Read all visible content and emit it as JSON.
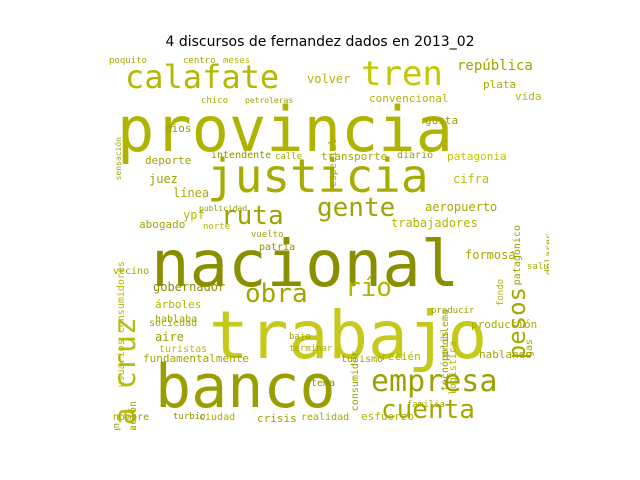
{
  "title": "4 discursos de fernandez dados en 2013_02",
  "cloud": {
    "words": [
      {
        "text": "provincia",
        "color": "#b0b400",
        "size": 62,
        "rot": 0
      },
      {
        "text": "nacional",
        "color": "#8a8f00",
        "size": 64,
        "rot": 0
      },
      {
        "text": "trabajo",
        "color": "#c6c91a",
        "size": 66,
        "rot": 0
      },
      {
        "text": "banco",
        "color": "#9a9e00",
        "size": 60,
        "rot": 0
      },
      {
        "text": "justicia",
        "color": "#a8ac00",
        "size": 46,
        "rot": 0
      },
      {
        "text": "calafate",
        "color": "#b4b800",
        "size": 32,
        "rot": 0
      },
      {
        "text": "tren",
        "color": "#c4c600",
        "size": 34,
        "rot": 0
      },
      {
        "text": "empresa",
        "color": "#9ca000",
        "size": 30,
        "rot": 0
      },
      {
        "text": "cuenta",
        "color": "#a4a800",
        "size": 26,
        "rot": 0
      },
      {
        "text": "santa cruz",
        "color": "#b8bb10",
        "size": 30,
        "rot": -90
      },
      {
        "text": "ruta",
        "color": "#9ea200",
        "size": 26,
        "rot": 0
      },
      {
        "text": "gente",
        "color": "#a0a400",
        "size": 26,
        "rot": 0
      },
      {
        "text": "obra",
        "color": "#a2a600",
        "size": 26,
        "rot": 0
      },
      {
        "text": "río",
        "color": "#b2b600",
        "size": 26,
        "rot": 0
      },
      {
        "text": "pesos",
        "color": "#a6aa00",
        "size": 24,
        "rot": -90
      },
      {
        "text": "república",
        "color": "#a0a400",
        "size": 14,
        "rot": 0
      },
      {
        "text": "convencional",
        "color": "#b0b400",
        "size": 11,
        "rot": 0
      },
      {
        "text": "plata",
        "color": "#a8ac00",
        "size": 11,
        "rot": 0
      },
      {
        "text": "vida",
        "color": "#b4b800",
        "size": 11,
        "rot": 0
      },
      {
        "text": "gusta",
        "color": "#9a9e00",
        "size": 11,
        "rot": 0
      },
      {
        "text": "patagonia",
        "color": "#c2c400",
        "size": 11,
        "rot": 0
      },
      {
        "text": "diario",
        "color": "#9c9f00",
        "size": 10,
        "rot": 0
      },
      {
        "text": "transporte",
        "color": "#a4a800",
        "size": 11,
        "rot": 0
      },
      {
        "text": "intendente",
        "color": "#8f9300",
        "size": 10,
        "rot": 0
      },
      {
        "text": "deporte",
        "color": "#a0a400",
        "size": 11,
        "rot": 0
      },
      {
        "text": "cifra",
        "color": "#b8bb10",
        "size": 12,
        "rot": 0
      },
      {
        "text": "aeropuerto",
        "color": "#a6aa00",
        "size": 12,
        "rot": 0
      },
      {
        "text": "trabajadores",
        "color": "#b2b600",
        "size": 12,
        "rot": 0
      },
      {
        "text": "juez",
        "color": "#9ea200",
        "size": 12,
        "rot": 0
      },
      {
        "text": "línea",
        "color": "#a8ac00",
        "size": 12,
        "rot": 0
      },
      {
        "text": "ypf",
        "color": "#b4b800",
        "size": 12,
        "rot": 0
      },
      {
        "text": "abogado",
        "color": "#a2a600",
        "size": 11,
        "rot": 0
      },
      {
        "text": "gobernador",
        "color": "#8c9000",
        "size": 12,
        "rot": 0
      },
      {
        "text": "árboles",
        "color": "#b0b400",
        "size": 11,
        "rot": 0
      },
      {
        "text": "hablaba",
        "color": "#9a9e00",
        "size": 10,
        "rot": 0
      },
      {
        "text": "sociedad",
        "color": "#a4a800",
        "size": 10,
        "rot": 0
      },
      {
        "text": "aire",
        "color": "#9c9f00",
        "size": 12,
        "rot": 0
      },
      {
        "text": "turistas",
        "color": "#b8bb10",
        "size": 10,
        "rot": 0
      },
      {
        "text": "fundamentalmente",
        "color": "#a0a400",
        "size": 11,
        "rot": 0
      },
      {
        "text": "formosa",
        "color": "#a6aa00",
        "size": 12,
        "rot": 0
      },
      {
        "text": "producción",
        "color": "#a8ac00",
        "size": 11,
        "rot": 0
      },
      {
        "text": "producir",
        "color": "#9ea200",
        "size": 9,
        "rot": 0
      },
      {
        "text": "hablando",
        "color": "#a2a600",
        "size": 11,
        "rot": 0
      },
      {
        "text": "recién",
        "color": "#b2b600",
        "size": 11,
        "rot": 0
      },
      {
        "text": "turismo",
        "color": "#9a9e00",
        "size": 10,
        "rot": 0
      },
      {
        "text": "tema",
        "color": "#8f9300",
        "size": 10,
        "rot": 0
      },
      {
        "text": "crisis",
        "color": "#9c9f00",
        "size": 11,
        "rot": 0
      },
      {
        "text": "realidad",
        "color": "#a4a800",
        "size": 10,
        "rot": 0
      },
      {
        "text": "esfuerzo",
        "color": "#b0b400",
        "size": 11,
        "rot": 0
      },
      {
        "text": "familia",
        "color": "#a6aa00",
        "size": 9,
        "rot": 0
      },
      {
        "text": "ciudad",
        "color": "#a8ac00",
        "size": 10,
        "rot": 0
      },
      {
        "text": "turbio",
        "color": "#8c9000",
        "size": 9,
        "rot": 0
      },
      {
        "text": "nombre",
        "color": "#9ea200",
        "size": 10,
        "rot": 0
      },
      {
        "text": "vecino",
        "color": "#a0a400",
        "size": 10,
        "rot": 0
      },
      {
        "text": "centro",
        "color": "#a2a600",
        "size": 9,
        "rot": 0
      },
      {
        "text": "meses",
        "color": "#b4b800",
        "size": 9,
        "rot": 0
      },
      {
        "text": "poquito",
        "color": "#a6aa00",
        "size": 9,
        "rot": 0
      },
      {
        "text": "volver",
        "color": "#b2b600",
        "size": 12,
        "rot": 0
      },
      {
        "text": "dios",
        "color": "#9a9e00",
        "size": 11,
        "rot": 0
      },
      {
        "text": "chico",
        "color": "#a8ac00",
        "size": 9,
        "rot": 0
      },
      {
        "text": "petroleras",
        "color": "#9c9f00",
        "size": 8,
        "rot": 0
      },
      {
        "text": "calle",
        "color": "#a4a800",
        "size": 9,
        "rot": 0
      },
      {
        "text": "patria",
        "color": "#8f9300",
        "size": 10,
        "rot": 0
      },
      {
        "text": "vuelto",
        "color": "#a2a600",
        "size": 9,
        "rot": 0
      },
      {
        "text": "norte",
        "color": "#b0b400",
        "size": 9,
        "rot": 0
      },
      {
        "text": "dólares",
        "color": "#a6aa00",
        "size": 10,
        "rot": -90
      },
      {
        "text": "patagónico",
        "color": "#9ea200",
        "size": 10,
        "rot": -90
      },
      {
        "text": "salud",
        "color": "#a8ac00",
        "size": 9,
        "rot": 0
      },
      {
        "text": "logística",
        "color": "#b2b600",
        "size": 10,
        "rot": -90
      },
      {
        "text": "tecnópolis",
        "color": "#9a9e00",
        "size": 10,
        "rot": -90
      },
      {
        "text": "problema",
        "color": "#a0a400",
        "size": 10,
        "rot": -90
      },
      {
        "text": "gas",
        "color": "#a4a800",
        "size": 10,
        "rot": -90
      },
      {
        "text": "consumidor",
        "color": "#9c9f00",
        "size": 10,
        "rot": -90
      },
      {
        "text": "usuarios consumidores",
        "color": "#b4b800",
        "size": 10,
        "rot": -90
      },
      {
        "text": "desocupación",
        "color": "#a2a600",
        "size": 10,
        "rot": -90
      },
      {
        "text": "televisión",
        "color": "#8c9000",
        "size": 9,
        "rot": -90
      },
      {
        "text": "especial",
        "color": "#a6aa00",
        "size": 10,
        "rot": -90
      },
      {
        "text": "bajo",
        "color": "#9ea200",
        "size": 9,
        "rot": 0
      },
      {
        "text": "terminar",
        "color": "#a8ac00",
        "size": 9,
        "rot": 0
      },
      {
        "text": "fondo",
        "color": "#b0b400",
        "size": 9,
        "rot": -90
      },
      {
        "text": "publicidad",
        "color": "#9a9e00",
        "size": 8,
        "rot": 0
      },
      {
        "text": "sensación",
        "color": "#a4a800",
        "size": 8,
        "rot": -90
      }
    ]
  }
}
